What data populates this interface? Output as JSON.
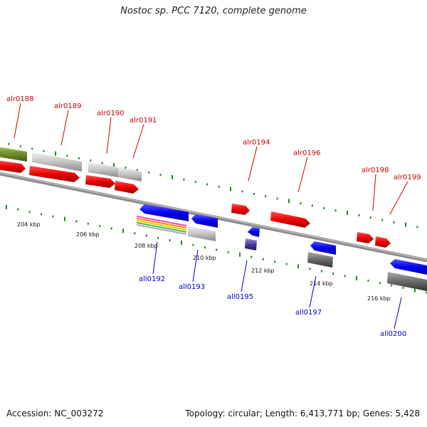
{
  "title": "Nostoc sp. PCC 7120, complete genome",
  "accession": "Accession: NC_003272",
  "summary": "Topology: circular; Length: 6,413,771 bp; Genes: 5,428",
  "scale_labels": [
    "204 kbp",
    "206 kbp",
    "208 kbp",
    "210 kbp",
    "212 kbp",
    "214 kbp",
    "216 kbp"
  ],
  "forward_genes": [
    "alr0188",
    "alr0189",
    "alr0190",
    "alr0191",
    "alr0194",
    "alr0196",
    "alr0198",
    "alr0199"
  ],
  "reverse_genes": [
    "all0192",
    "all0193",
    "all0195",
    "all0197",
    "all0200"
  ],
  "colors": {
    "forward_cds": "#ee0000",
    "reverse_cds": "#0000ee",
    "tick": "#228822",
    "backbone": "#808080",
    "forward_label": "#cc0000",
    "reverse_label": "#0000bb"
  }
}
